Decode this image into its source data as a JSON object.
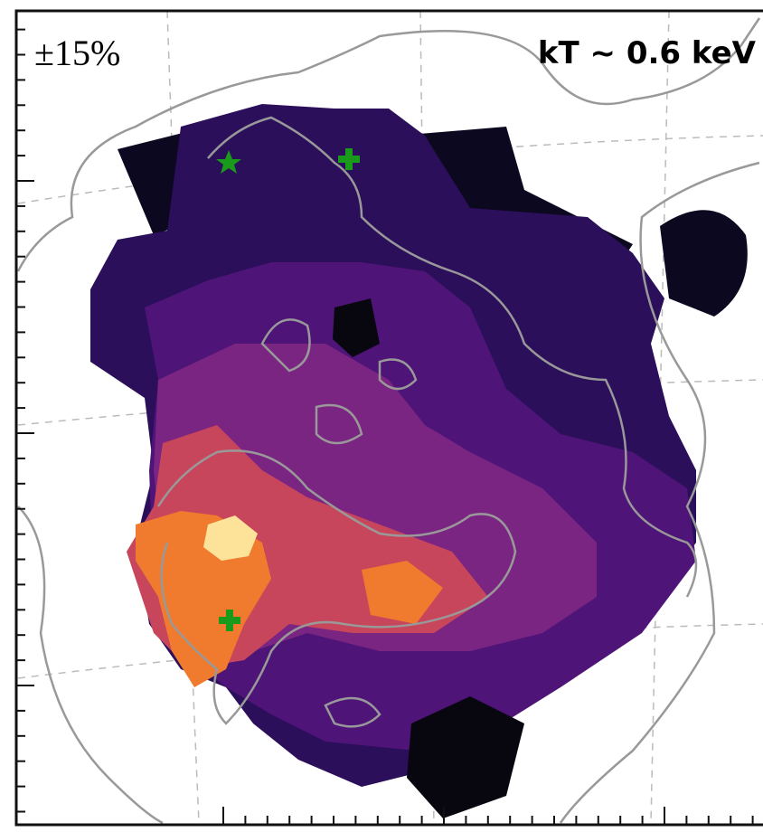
{
  "annotations": {
    "uncertainty": "±15%",
    "temperature": "kT ~ 0.6 keV"
  }
}
